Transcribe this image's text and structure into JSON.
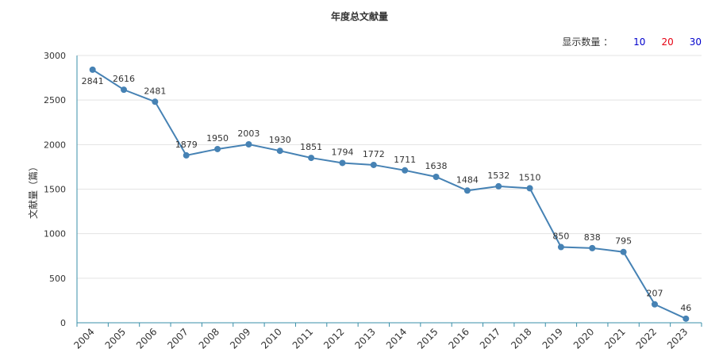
{
  "title": "年度总文献量",
  "display_count": {
    "label": "显示数量 ：",
    "options": [
      {
        "label": "10",
        "color": "#0000cc"
      },
      {
        "label": "20",
        "color": "#e60012"
      },
      {
        "label": "30",
        "color": "#0000cc"
      }
    ]
  },
  "colors": {
    "line": "#4682b4",
    "point": "#4682b4",
    "axis": "#3a8fa8",
    "grid": "#e3e3e3"
  },
  "chart_data": {
    "type": "line",
    "title": "年度总文献量",
    "xlabel": "",
    "ylabel": "文献量（篇）",
    "ylim": [
      0,
      3000
    ],
    "yticks": [
      0,
      500,
      1000,
      1500,
      2000,
      2500,
      3000
    ],
    "grid": true,
    "categories": [
      "2004",
      "2005",
      "2006",
      "2007",
      "2008",
      "2009",
      "2010",
      "2011",
      "2012",
      "2013",
      "2014",
      "2015",
      "2016",
      "2017",
      "2018",
      "2019",
      "2020",
      "2021",
      "2022",
      "2023"
    ],
    "values": [
      2841,
      2616,
      2481,
      1879,
      1950,
      2003,
      1930,
      1851,
      1794,
      1772,
      1711,
      1638,
      1484,
      1532,
      1510,
      850,
      838,
      795,
      207,
      46
    ]
  }
}
